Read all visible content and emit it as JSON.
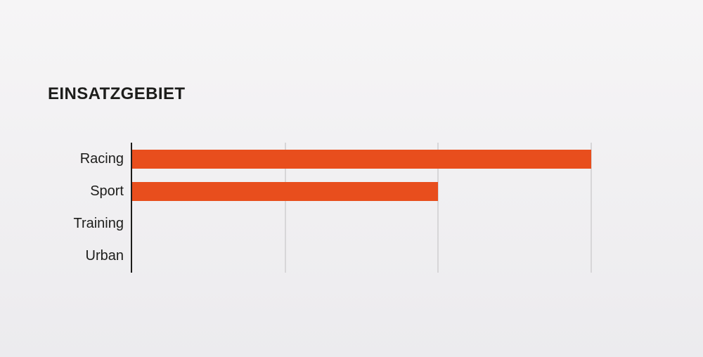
{
  "page": {
    "title": "EINSATZGEBIET"
  },
  "colors": {
    "background_top": "#f6f5f6",
    "background_bottom": "#ecebee",
    "bar": "#e84e1d",
    "axis": "#1d1d1b",
    "gridline": "#d7d6d8",
    "text": "#1d1d1b"
  },
  "chart_data": {
    "type": "bar",
    "orientation": "horizontal",
    "title": "EINSATZGEBIET",
    "categories": [
      "Racing",
      "Sport",
      "Training",
      "Urban"
    ],
    "values": [
      3,
      2,
      0,
      0
    ],
    "xlabel": "",
    "ylabel": "",
    "xlim": [
      0,
      3
    ],
    "xticks": [
      1,
      2,
      3
    ],
    "tick_labels_visible": false,
    "grid": true,
    "legend": "none"
  }
}
